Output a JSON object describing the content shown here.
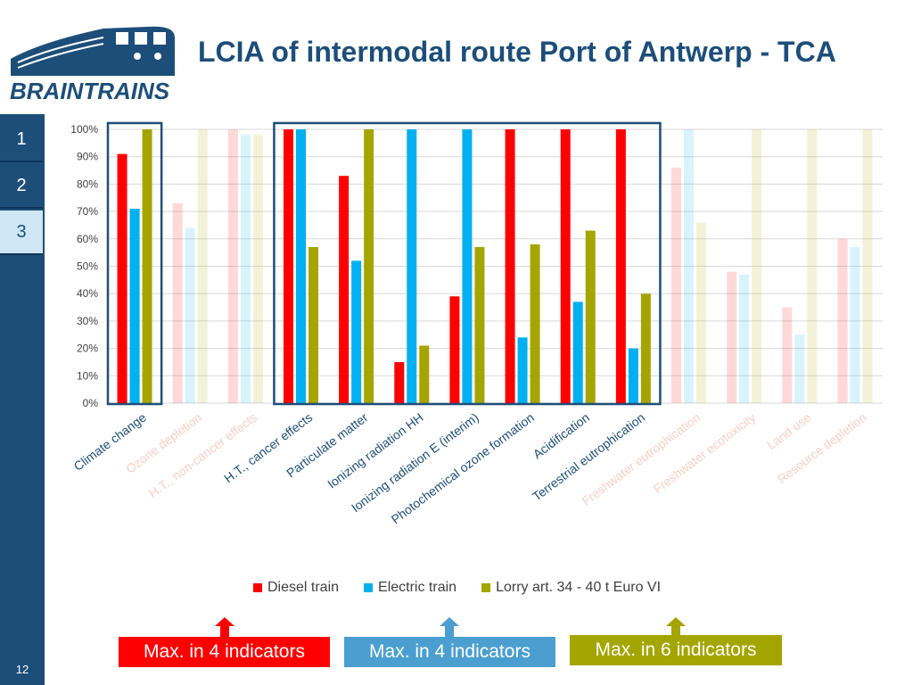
{
  "slide": {
    "title": "LCIA of intermodal route Port of Antwerp - TCA",
    "page_number": "12",
    "logo_text": "BRAINTRAINS"
  },
  "sidebar": {
    "tabs": [
      {
        "label": "1",
        "active": false
      },
      {
        "label": "2",
        "active": false
      },
      {
        "label": "3",
        "active": true
      }
    ]
  },
  "colors": {
    "diesel": "#ff0000",
    "electric": "#00b0f0",
    "lorry": "#a5a500",
    "frame": "#1d4e7a",
    "callout_red": "#ff0000",
    "callout_blue": "#4a9fd0",
    "callout_olive": "#a5a500"
  },
  "chart_data": {
    "type": "bar",
    "title": "",
    "xlabel": "",
    "ylabel": "",
    "ylim": [
      0,
      100
    ],
    "yticks": [
      "0%",
      "10%",
      "20%",
      "30%",
      "40%",
      "50%",
      "60%",
      "70%",
      "80%",
      "90%",
      "100%"
    ],
    "categories": [
      "Climate change",
      "Ozone depletion",
      "H.T., non-cancer effects",
      "H.T., cancer effects",
      "Particulate matter",
      "Ionizing radiation HH",
      "Ionizing radiation E (interim)",
      "Photochemical ozone formation",
      "Acidification",
      "Terrestrial eutrophication",
      "Freshwater eutrophication",
      "Freshwater ecotoxicity",
      "Land use",
      "Resource depletion"
    ],
    "faded": [
      false,
      true,
      true,
      false,
      false,
      false,
      false,
      false,
      false,
      false,
      true,
      true,
      true,
      true
    ],
    "series": [
      {
        "name": "Diesel train",
        "values": [
          91,
          73,
          100,
          100,
          83,
          15,
          39,
          100,
          100,
          100,
          86,
          48,
          35,
          60
        ]
      },
      {
        "name": "Electric train",
        "values": [
          71,
          64,
          98,
          100,
          52,
          100,
          100,
          24,
          37,
          20,
          100,
          47,
          25,
          57
        ]
      },
      {
        "name": "Lorry art. 34 - 40 t Euro VI",
        "values": [
          100,
          100,
          98,
          57,
          100,
          21,
          57,
          58,
          63,
          40,
          66,
          100,
          100,
          100
        ]
      }
    ],
    "highlight_groups": [
      [
        0,
        0
      ],
      [
        3,
        9
      ]
    ],
    "legend_position": "bottom"
  },
  "callouts": [
    {
      "label": "Max. in 4 indicators",
      "color": "#ff0000"
    },
    {
      "label": "Max. in 4 indicators",
      "color": "#4a9fd0"
    },
    {
      "label": "Max. in 6 indicators",
      "color": "#a5a500"
    }
  ]
}
